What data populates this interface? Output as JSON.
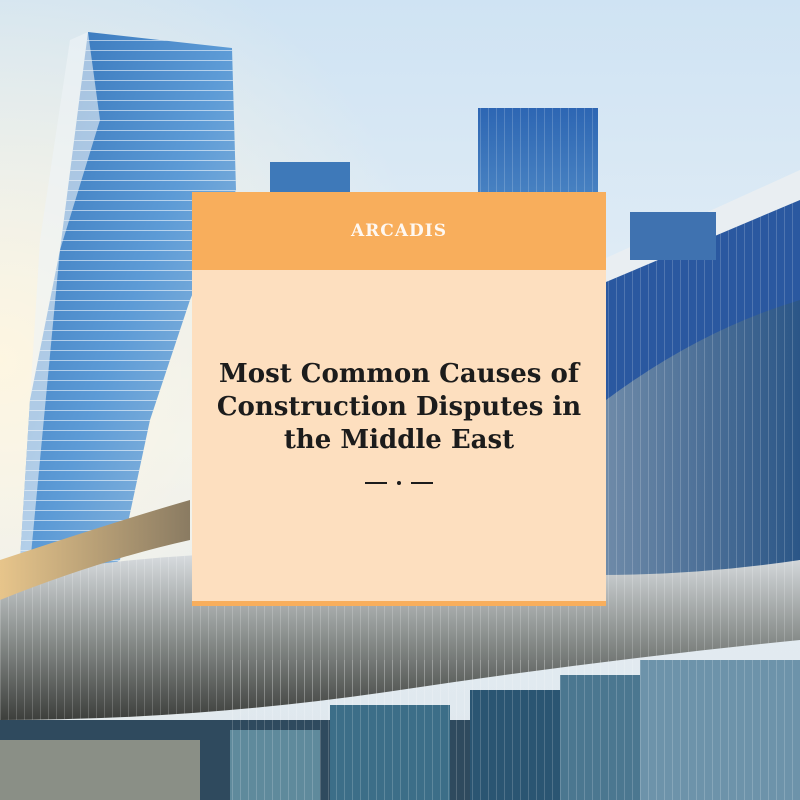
{
  "card": {
    "brand": "ARCADIS",
    "headline_lines": [
      "Most Common Causes of",
      "Construction Disputes in",
      "the Middle East"
    ]
  },
  "colors": {
    "card_background": "#fddfbf",
    "card_header": "#f8ae5c",
    "headline_text": "#1c1c1c",
    "brand_text": "#ffffff"
  }
}
